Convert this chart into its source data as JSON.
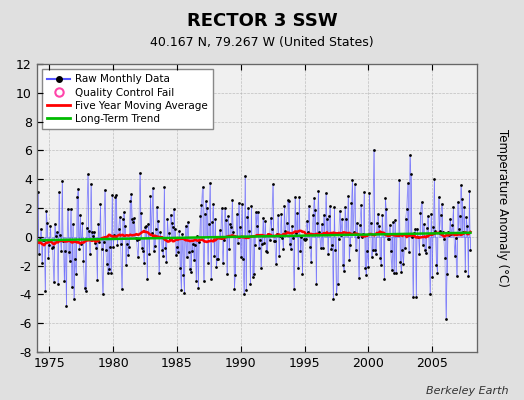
{
  "title": "RECTOR 3 SSW",
  "subtitle": "40.167 N, 79.267 W (United States)",
  "ylabel": "Temperature Anomaly (°C)",
  "credit": "Berkeley Earth",
  "ylim": [
    -8,
    12
  ],
  "yticks": [
    -8,
    -6,
    -4,
    -2,
    0,
    2,
    4,
    6,
    8,
    10,
    12
  ],
  "xlim": [
    1974.0,
    2008.5
  ],
  "xticks": [
    1975,
    1980,
    1985,
    1990,
    1995,
    2000,
    2005
  ],
  "background_color": "#e0e0e0",
  "plot_bg_color": "#f0f0f0",
  "raw_color": "#5555ff",
  "raw_marker_color": "#000000",
  "moving_avg_color": "#ff0000",
  "trend_color": "#00bb00",
  "qc_color": "#ff44aa",
  "legend_items": [
    "Raw Monthly Data",
    "Quality Control Fail",
    "Five Year Moving Average",
    "Long-Term Trend"
  ],
  "start_year": 1974.083,
  "n_months": 408,
  "noise_std": 2.0,
  "trend_slope": 0.022,
  "trend_intercept": -0.25
}
